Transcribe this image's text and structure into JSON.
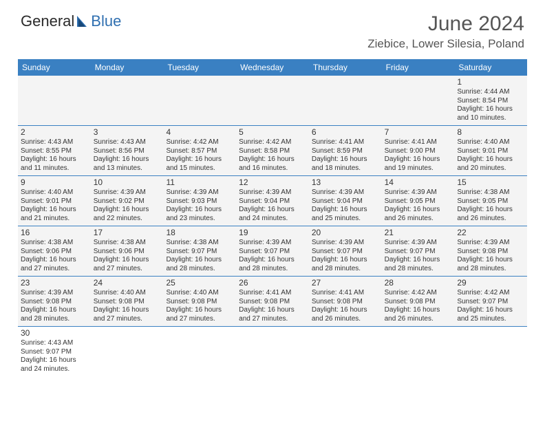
{
  "logo": {
    "part1": "General",
    "part2": "Blue"
  },
  "title": "June 2024",
  "location": "Ziebice, Lower Silesia, Poland",
  "styling": {
    "header_bg": "#3a80c2",
    "header_text": "#ffffff",
    "cell_bg": "#f4f4f4",
    "border_color": "#3a80c2",
    "text_color": "#333333",
    "title_color": "#555555",
    "logo_blue": "#2f6fb0",
    "page_bg": "#ffffff",
    "title_fontsize": 30,
    "location_fontsize": 17,
    "dayheader_fontsize": 12,
    "cell_fontsize": 10
  },
  "dayNames": [
    "Sunday",
    "Monday",
    "Tuesday",
    "Wednesday",
    "Thursday",
    "Friday",
    "Saturday"
  ],
  "weeks": [
    [
      {
        "empty": true
      },
      {
        "empty": true
      },
      {
        "empty": true
      },
      {
        "empty": true
      },
      {
        "empty": true
      },
      {
        "empty": true
      },
      {
        "n": "1",
        "rise": "4:44 AM",
        "set": "8:54 PM",
        "dl1": "Daylight: 16 hours",
        "dl2": "and 10 minutes."
      }
    ],
    [
      {
        "n": "2",
        "rise": "4:43 AM",
        "set": "8:55 PM",
        "dl1": "Daylight: 16 hours",
        "dl2": "and 11 minutes."
      },
      {
        "n": "3",
        "rise": "4:43 AM",
        "set": "8:56 PM",
        "dl1": "Daylight: 16 hours",
        "dl2": "and 13 minutes."
      },
      {
        "n": "4",
        "rise": "4:42 AM",
        "set": "8:57 PM",
        "dl1": "Daylight: 16 hours",
        "dl2": "and 15 minutes."
      },
      {
        "n": "5",
        "rise": "4:42 AM",
        "set": "8:58 PM",
        "dl1": "Daylight: 16 hours",
        "dl2": "and 16 minutes."
      },
      {
        "n": "6",
        "rise": "4:41 AM",
        "set": "8:59 PM",
        "dl1": "Daylight: 16 hours",
        "dl2": "and 18 minutes."
      },
      {
        "n": "7",
        "rise": "4:41 AM",
        "set": "9:00 PM",
        "dl1": "Daylight: 16 hours",
        "dl2": "and 19 minutes."
      },
      {
        "n": "8",
        "rise": "4:40 AM",
        "set": "9:01 PM",
        "dl1": "Daylight: 16 hours",
        "dl2": "and 20 minutes."
      }
    ],
    [
      {
        "n": "9",
        "rise": "4:40 AM",
        "set": "9:01 PM",
        "dl1": "Daylight: 16 hours",
        "dl2": "and 21 minutes."
      },
      {
        "n": "10",
        "rise": "4:39 AM",
        "set": "9:02 PM",
        "dl1": "Daylight: 16 hours",
        "dl2": "and 22 minutes."
      },
      {
        "n": "11",
        "rise": "4:39 AM",
        "set": "9:03 PM",
        "dl1": "Daylight: 16 hours",
        "dl2": "and 23 minutes."
      },
      {
        "n": "12",
        "rise": "4:39 AM",
        "set": "9:04 PM",
        "dl1": "Daylight: 16 hours",
        "dl2": "and 24 minutes."
      },
      {
        "n": "13",
        "rise": "4:39 AM",
        "set": "9:04 PM",
        "dl1": "Daylight: 16 hours",
        "dl2": "and 25 minutes."
      },
      {
        "n": "14",
        "rise": "4:39 AM",
        "set": "9:05 PM",
        "dl1": "Daylight: 16 hours",
        "dl2": "and 26 minutes."
      },
      {
        "n": "15",
        "rise": "4:38 AM",
        "set": "9:05 PM",
        "dl1": "Daylight: 16 hours",
        "dl2": "and 26 minutes."
      }
    ],
    [
      {
        "n": "16",
        "rise": "4:38 AM",
        "set": "9:06 PM",
        "dl1": "Daylight: 16 hours",
        "dl2": "and 27 minutes."
      },
      {
        "n": "17",
        "rise": "4:38 AM",
        "set": "9:06 PM",
        "dl1": "Daylight: 16 hours",
        "dl2": "and 27 minutes."
      },
      {
        "n": "18",
        "rise": "4:38 AM",
        "set": "9:07 PM",
        "dl1": "Daylight: 16 hours",
        "dl2": "and 28 minutes."
      },
      {
        "n": "19",
        "rise": "4:39 AM",
        "set": "9:07 PM",
        "dl1": "Daylight: 16 hours",
        "dl2": "and 28 minutes."
      },
      {
        "n": "20",
        "rise": "4:39 AM",
        "set": "9:07 PM",
        "dl1": "Daylight: 16 hours",
        "dl2": "and 28 minutes."
      },
      {
        "n": "21",
        "rise": "4:39 AM",
        "set": "9:07 PM",
        "dl1": "Daylight: 16 hours",
        "dl2": "and 28 minutes."
      },
      {
        "n": "22",
        "rise": "4:39 AM",
        "set": "9:08 PM",
        "dl1": "Daylight: 16 hours",
        "dl2": "and 28 minutes."
      }
    ],
    [
      {
        "n": "23",
        "rise": "4:39 AM",
        "set": "9:08 PM",
        "dl1": "Daylight: 16 hours",
        "dl2": "and 28 minutes."
      },
      {
        "n": "24",
        "rise": "4:40 AM",
        "set": "9:08 PM",
        "dl1": "Daylight: 16 hours",
        "dl2": "and 27 minutes."
      },
      {
        "n": "25",
        "rise": "4:40 AM",
        "set": "9:08 PM",
        "dl1": "Daylight: 16 hours",
        "dl2": "and 27 minutes."
      },
      {
        "n": "26",
        "rise": "4:41 AM",
        "set": "9:08 PM",
        "dl1": "Daylight: 16 hours",
        "dl2": "and 27 minutes."
      },
      {
        "n": "27",
        "rise": "4:41 AM",
        "set": "9:08 PM",
        "dl1": "Daylight: 16 hours",
        "dl2": "and 26 minutes."
      },
      {
        "n": "28",
        "rise": "4:42 AM",
        "set": "9:08 PM",
        "dl1": "Daylight: 16 hours",
        "dl2": "and 26 minutes."
      },
      {
        "n": "29",
        "rise": "4:42 AM",
        "set": "9:07 PM",
        "dl1": "Daylight: 16 hours",
        "dl2": "and 25 minutes."
      }
    ],
    [
      {
        "n": "30",
        "rise": "4:43 AM",
        "set": "9:07 PM",
        "dl1": "Daylight: 16 hours",
        "dl2": "and 24 minutes.",
        "overflow": true
      },
      {
        "empty": true,
        "overflow": true
      },
      {
        "empty": true,
        "overflow": true
      },
      {
        "empty": true,
        "overflow": true
      },
      {
        "empty": true,
        "overflow": true
      },
      {
        "empty": true,
        "overflow": true
      },
      {
        "empty": true,
        "overflow": true
      }
    ]
  ]
}
